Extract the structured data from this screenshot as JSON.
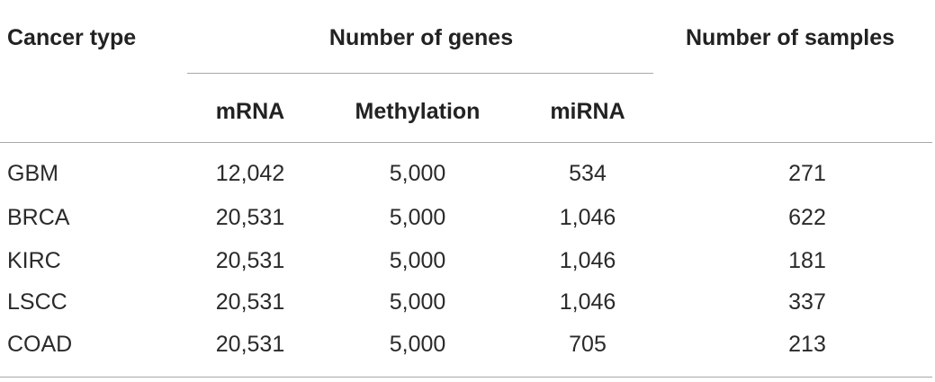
{
  "table": {
    "headers": {
      "cancer_type": "Cancer type",
      "number_of_genes": "Number of genes",
      "number_of_samples": "Number of samples",
      "sub": [
        "mRNA",
        "Methylation",
        "miRNA"
      ]
    },
    "rows": [
      {
        "cancer_type": "GBM",
        "mrna": "12,042",
        "methylation": "5,000",
        "mirna": "534",
        "samples": "271"
      },
      {
        "cancer_type": "BRCA",
        "mrna": "20,531",
        "methylation": "5,000",
        "mirna": "1,046",
        "samples": "622"
      },
      {
        "cancer_type": "KIRC",
        "mrna": "20,531",
        "methylation": "5,000",
        "mirna": "1,046",
        "samples": "181"
      },
      {
        "cancer_type": "LSCC",
        "mrna": "20,531",
        "methylation": "5,000",
        "mirna": "1,046",
        "samples": "337"
      },
      {
        "cancer_type": "COAD",
        "mrna": "20,531",
        "methylation": "5,000",
        "mirna": "705",
        "samples": "213"
      }
    ]
  },
  "colors": {
    "text": "#222222",
    "rule": "#a8a8a8"
  }
}
